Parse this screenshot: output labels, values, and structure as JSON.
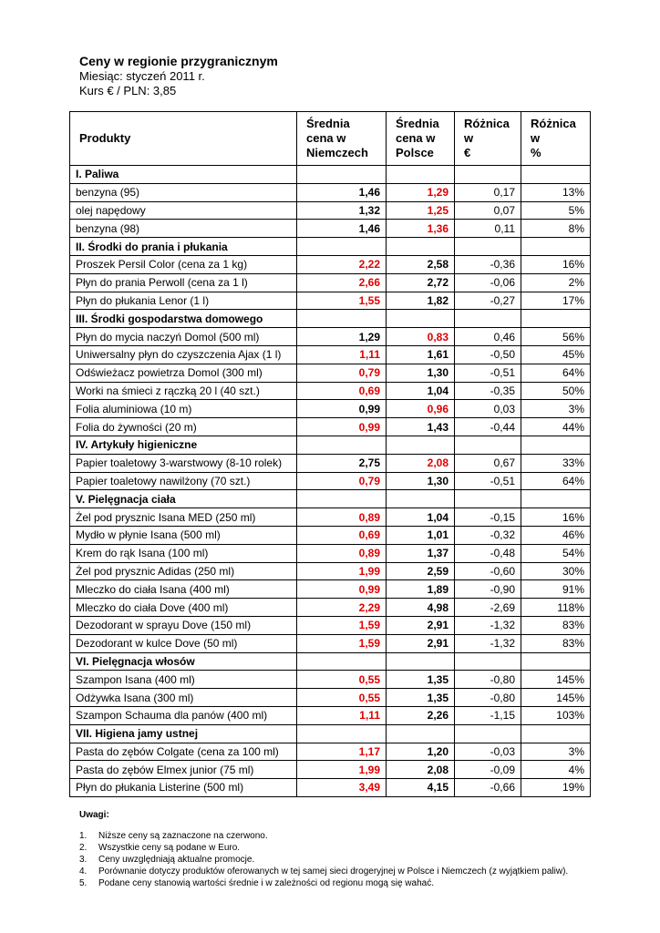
{
  "header": {
    "title": "Ceny w regionie przygranicznym",
    "month": "Miesiąc: styczeń 2011 r.",
    "rate": "Kurs € / PLN: 3,85"
  },
  "table": {
    "columns": [
      "Produkty",
      "Średnia\ncena w\nNiemczech",
      "Średnia\ncena w\nPolsce",
      "Różnica\nw\n€",
      "Różnica\nw\n%"
    ],
    "sections": [
      {
        "name": "I. Paliwa",
        "rows": [
          [
            "benzyna (95)",
            "1,46",
            "1,29",
            "0,17",
            "13%"
          ],
          [
            "olej napędowy",
            "1,32",
            "1,25",
            "0,07",
            "5%"
          ],
          [
            "benzyna (98)",
            "1,46",
            "1,36",
            "0,11",
            "8%"
          ]
        ]
      },
      {
        "name": "II. Środki do prania i płukania",
        "rows": [
          [
            "Proszek Persil Color (cena za 1 kg)",
            "2,22",
            "2,58",
            "-0,36",
            "16%"
          ],
          [
            "Płyn do prania Perwoll (cena za 1 l)",
            "2,66",
            "2,72",
            "-0,06",
            "2%"
          ],
          [
            "Płyn do płukania Lenor (1 l)",
            "1,55",
            "1,82",
            "-0,27",
            "17%"
          ]
        ]
      },
      {
        "name": "III. Środki gospodarstwa domowego",
        "rows": [
          [
            "Płyn do mycia naczyń Domol (500 ml)",
            "1,29",
            "0,83",
            "0,46",
            "56%"
          ],
          [
            "Uniwersalny płyn do czyszczenia Ajax (1 l)",
            "1,11",
            "1,61",
            "-0,50",
            "45%"
          ],
          [
            "Odświeżacz powietrza Domol (300 ml)",
            "0,79",
            "1,30",
            "-0,51",
            "64%"
          ],
          [
            "Worki na śmieci z rączką 20 l (40 szt.)",
            "0,69",
            "1,04",
            "-0,35",
            "50%"
          ],
          [
            "Folia aluminiowa (10 m)",
            "0,99",
            "0,96",
            "0,03",
            "3%"
          ],
          [
            "Folia do żywności (20 m)",
            "0,99",
            "1,43",
            "-0,44",
            "44%"
          ]
        ]
      },
      {
        "name": "IV. Artykuły higieniczne",
        "rows": [
          [
            "Papier toaletowy 3-warstwowy (8-10 rolek)",
            "2,75",
            "2,08",
            "0,67",
            "33%"
          ],
          [
            "Papier toaletowy nawilżony (70 szt.)",
            "0,79",
            "1,30",
            "-0,51",
            "64%"
          ]
        ]
      },
      {
        "name": "V. Pielęgnacja ciała",
        "rows": [
          [
            "Żel pod prysznic Isana MED (250 ml)",
            "0,89",
            "1,04",
            "-0,15",
            "16%"
          ],
          [
            "Mydło w płynie Isana (500 ml)",
            "0,69",
            "1,01",
            "-0,32",
            "46%"
          ],
          [
            "Krem do rąk Isana (100 ml)",
            "0,89",
            "1,37",
            "-0,48",
            "54%"
          ],
          [
            "Żel pod prysznic Adidas (250 ml)",
            "1,99",
            "2,59",
            "-0,60",
            "30%"
          ],
          [
            "Mleczko do ciała Isana (400 ml)",
            "0,99",
            "1,89",
            "-0,90",
            "91%"
          ],
          [
            "Mleczko do ciała Dove (400 ml)",
            "2,29",
            "4,98",
            "-2,69",
            "118%"
          ],
          [
            "Dezodorant w sprayu Dove (150 ml)",
            "1,59",
            "2,91",
            "-1,32",
            "83%"
          ],
          [
            "Dezodorant w kulce Dove (50 ml)",
            "1,59",
            "2,91",
            "-1,32",
            "83%"
          ]
        ]
      },
      {
        "name": "VI. Pielęgnacja włosów",
        "rows": [
          [
            "Szampon Isana (400 ml)",
            "0,55",
            "1,35",
            "-0,80",
            "145%"
          ],
          [
            "Odżywka Isana (300 ml)",
            "0,55",
            "1,35",
            "-0,80",
            "145%"
          ],
          [
            "Szampon Schauma dla panów (400 ml)",
            "1,11",
            "2,26",
            "-1,15",
            "103%"
          ]
        ]
      },
      {
        "name": "VII. Higiena jamy ustnej",
        "rows": [
          [
            "Pasta do zębów Colgate (cena za 100 ml)",
            "1,17",
            "1,20",
            "-0,03",
            "3%"
          ],
          [
            "Pasta do zębów Elmex junior (75 ml)",
            "1,99",
            "2,08",
            "-0,09",
            "4%"
          ],
          [
            "Płyn do płukania Listerine (500 ml)",
            "3,49",
            "4,15",
            "-0,66",
            "19%"
          ]
        ]
      }
    ]
  },
  "notes": {
    "title": "Uwagi:",
    "items": [
      [
        "1.",
        "Niższe ceny są zaznaczone na czerwono."
      ],
      [
        "2.",
        "Wszystkie ceny są podane w Euro."
      ],
      [
        "3.",
        "Ceny uwzględniają aktualne promocje."
      ],
      [
        "4.",
        "Porównanie dotyczy produktów oferowanych w tej samej sieci drogeryjnej w Polsce i Niemczech (z wyjątkiem paliw)."
      ],
      [
        "5.",
        "Podane ceny stanowią wartości średnie i w zależności od regionu mogą się wahać."
      ]
    ]
  }
}
